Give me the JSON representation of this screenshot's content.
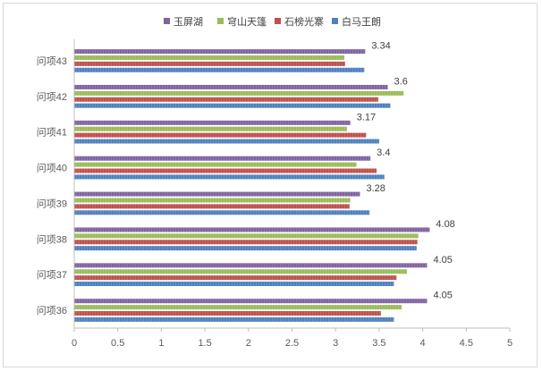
{
  "chart_data": {
    "type": "bar",
    "orientation": "horizontal",
    "categories": [
      "问项43",
      "问项42",
      "问项41",
      "问项40",
      "问项39",
      "问项38",
      "问项37",
      "问项36"
    ],
    "series": [
      {
        "name": "玉屏湖",
        "color": "#8064a2",
        "values": [
          3.34,
          3.6,
          3.17,
          3.4,
          3.28,
          4.08,
          4.05,
          4.05
        ],
        "labeled": true
      },
      {
        "name": "穹山天篷",
        "color": "#9bbb59",
        "values": [
          3.1,
          3.78,
          3.13,
          3.24,
          3.17,
          3.95,
          3.82,
          3.76
        ]
      },
      {
        "name": "石榜光寨",
        "color": "#c0504d",
        "values": [
          3.11,
          3.49,
          3.35,
          3.47,
          3.16,
          3.94,
          3.7,
          3.52
        ]
      },
      {
        "name": "白马王朗",
        "color": "#4f81bd",
        "values": [
          3.33,
          3.63,
          3.5,
          3.56,
          3.39,
          3.93,
          3.67,
          3.67
        ]
      }
    ],
    "data_labels": [
      "3.34",
      "3.6",
      "3.17",
      "3.4",
      "3.28",
      "4.08",
      "4.05",
      "4.05"
    ],
    "xlim": [
      0,
      5
    ],
    "x_ticks": [
      "0",
      "0.5",
      "1",
      "1.5",
      "2",
      "2.5",
      "3",
      "3.5",
      "4",
      "4.5",
      "5"
    ],
    "title": "",
    "xlabel": "",
    "ylabel": "",
    "legend_position": "top",
    "grid": false
  }
}
